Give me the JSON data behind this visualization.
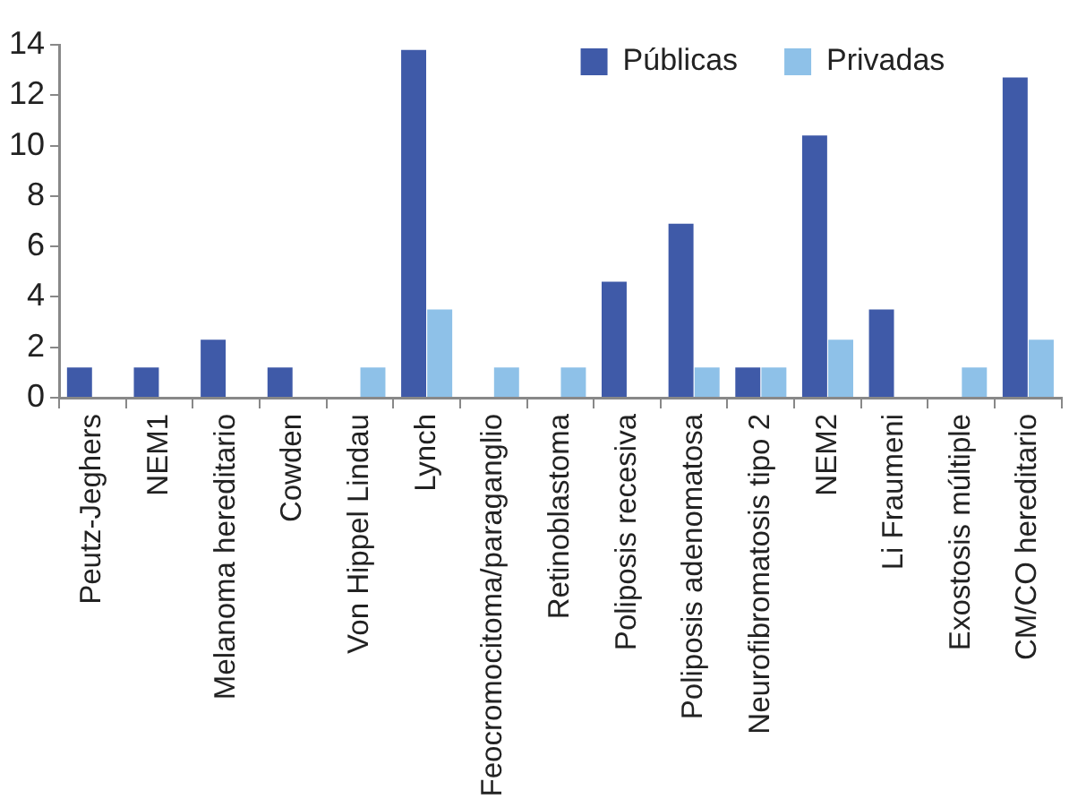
{
  "chart_data": {
    "type": "bar",
    "categories": [
      "Peutz-Jeghers",
      "NEM1",
      "Melanoma hereditario",
      "Cowden",
      "Von Hippel Lindau",
      "Lynch",
      "Feocromocitoma/paraganglio",
      "Retinoblastoma",
      "Poliposis recesiva",
      "Poliposis adenomatosa",
      "Neurofibromatosis tipo 2",
      "NEM2",
      "Li Fraumeni",
      "Exostosis múltiple",
      "CM/CO hereditario"
    ],
    "series": [
      {
        "name": "Públicas",
        "color": "#3f5aa8",
        "values": [
          1.2,
          1.2,
          2.3,
          1.2,
          0,
          13.8,
          0,
          0,
          4.6,
          6.9,
          1.2,
          10.4,
          3.5,
          0,
          12.7
        ]
      },
      {
        "name": "Privadas",
        "color": "#8ec1e8",
        "values": [
          0,
          0,
          0,
          0,
          1.2,
          3.5,
          1.2,
          1.2,
          0,
          1.2,
          1.2,
          2.3,
          0,
          1.2,
          2.3
        ]
      }
    ],
    "ylim": [
      0,
      14
    ],
    "yticks": [
      0,
      2,
      4,
      6,
      8,
      10,
      12,
      14
    ],
    "grid": false,
    "legend": "top right"
  }
}
